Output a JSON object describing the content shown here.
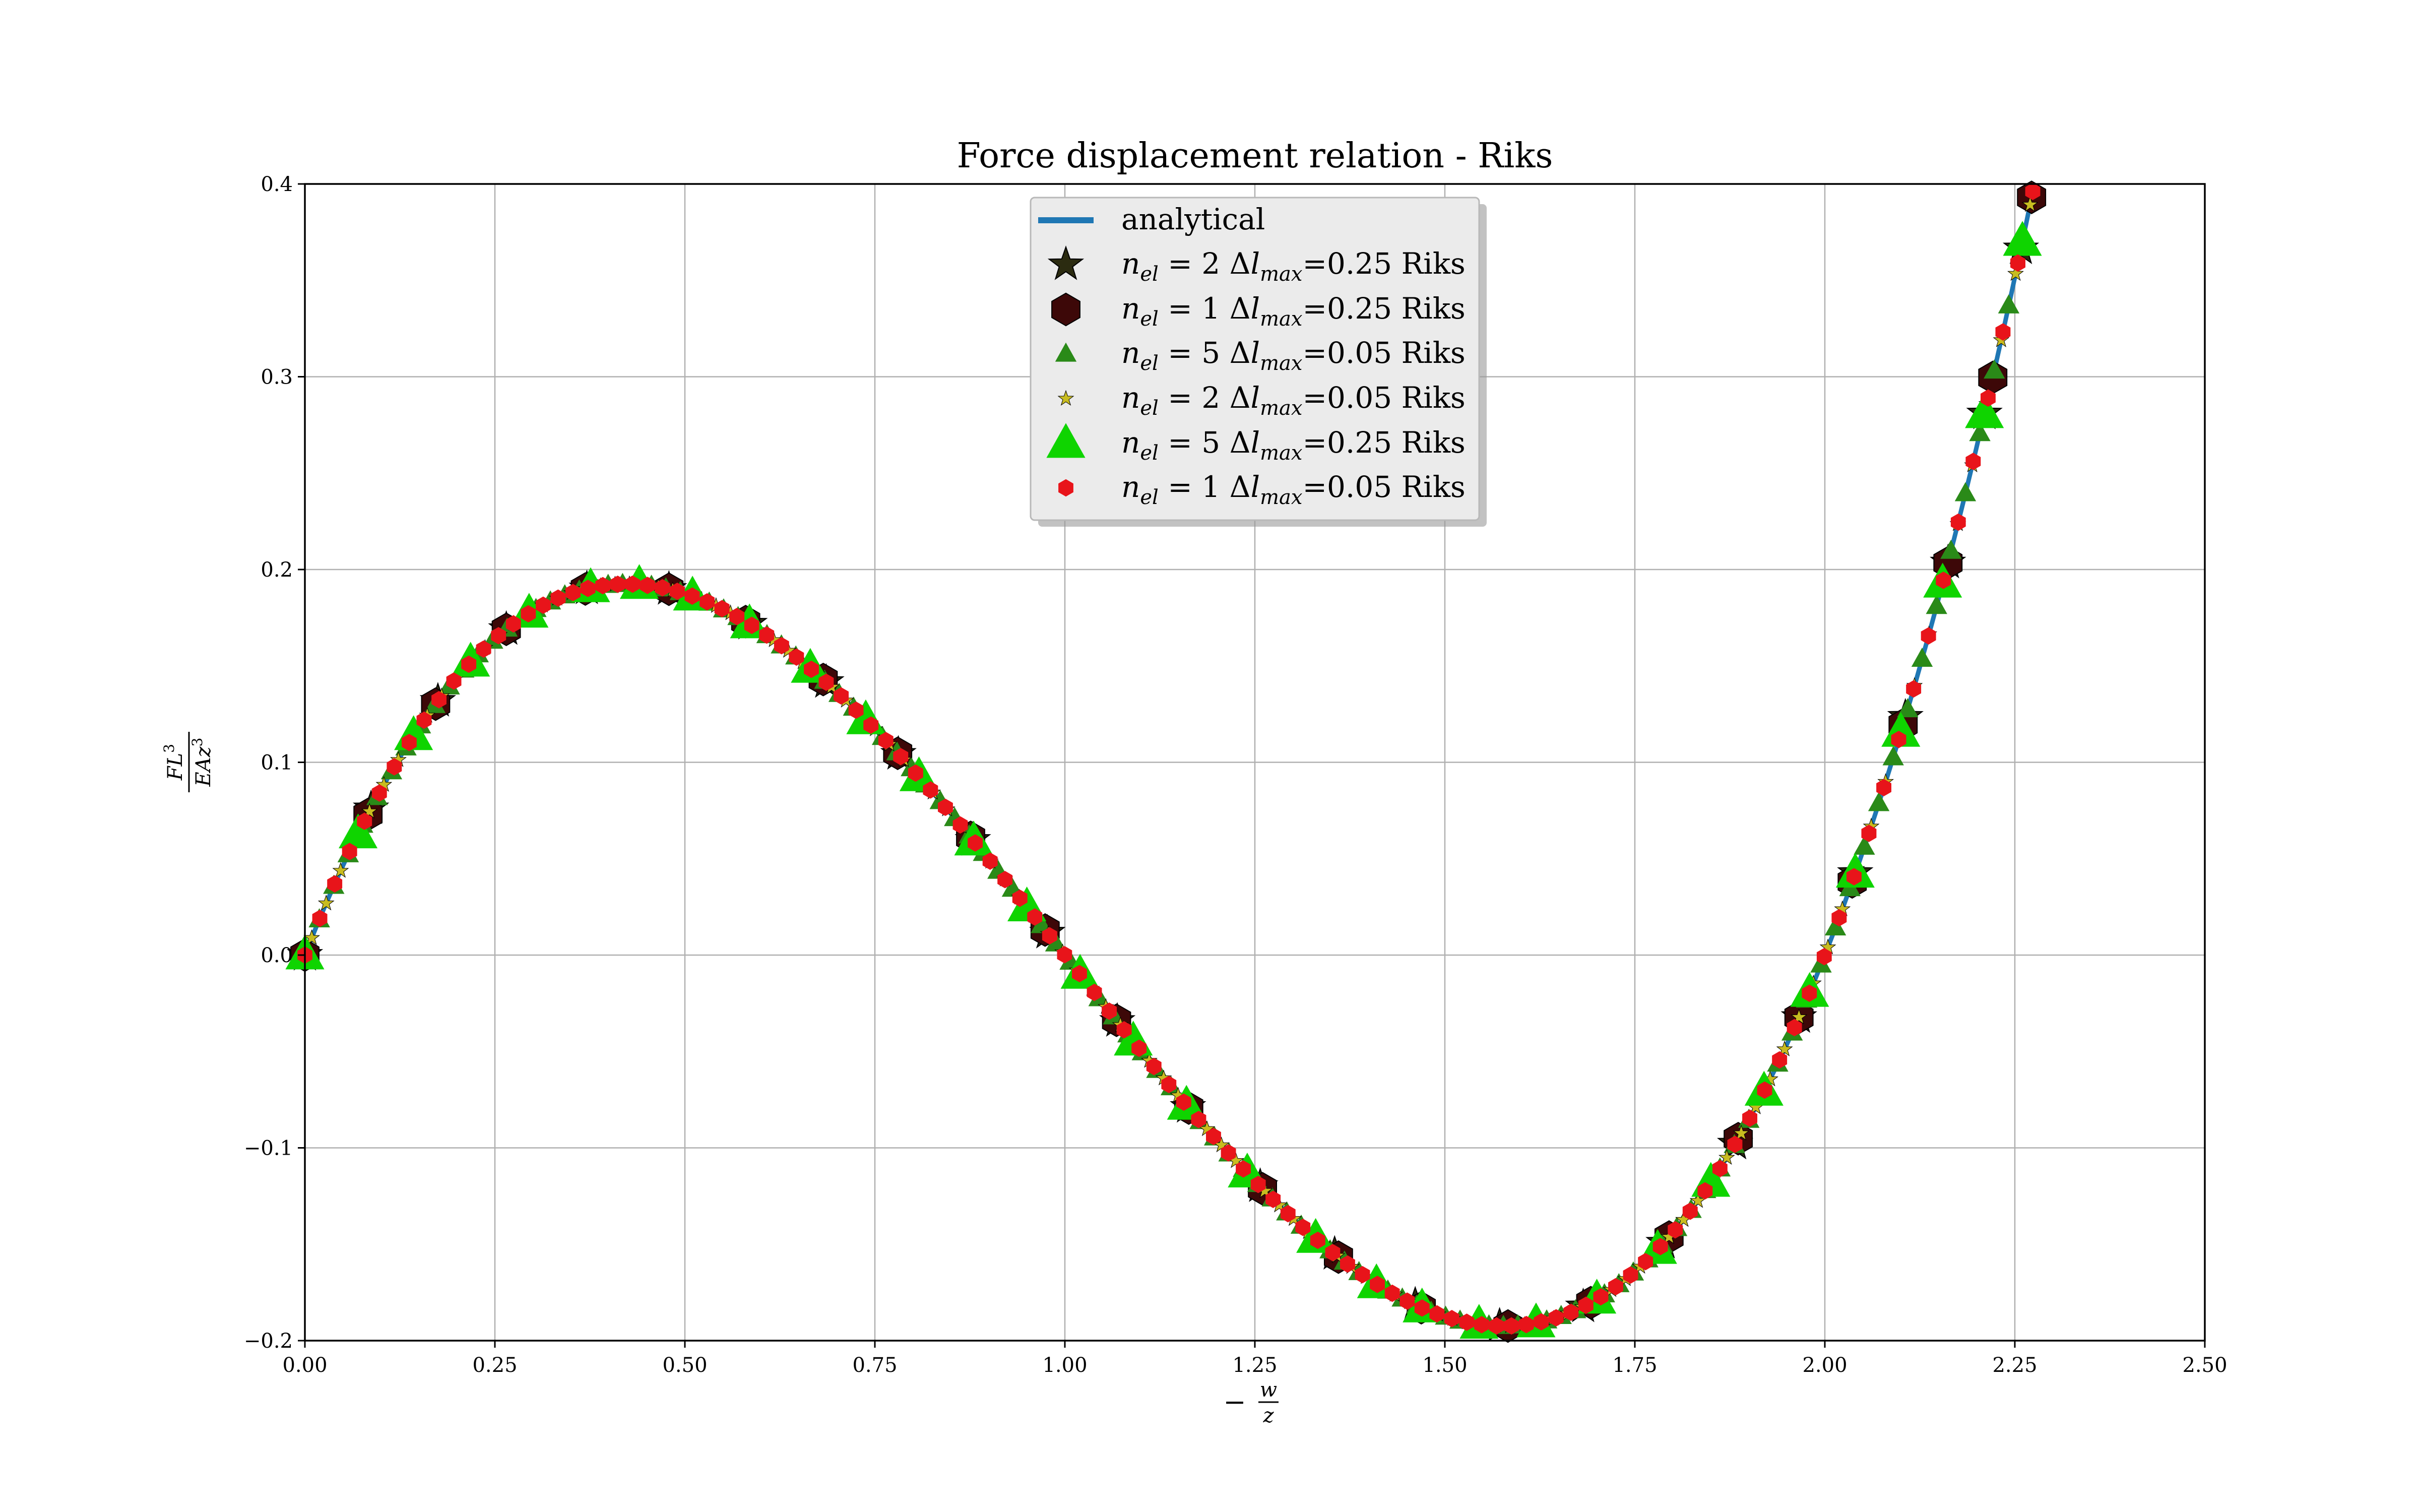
{
  "chart_data": {
    "type": "scatter",
    "title": "Force displacement relation - Riks",
    "xlabel": "−w/z",
    "ylabel": "FL³/EAz³",
    "xlim": [
      0.0,
      2.5
    ],
    "ylim": [
      -0.2,
      0.4
    ],
    "xticks": [
      0.0,
      0.25,
      0.5,
      0.75,
      1.0,
      1.25,
      1.5,
      1.75,
      2.0,
      2.25,
      2.5
    ],
    "yticks": [
      -0.2,
      -0.1,
      0.0,
      0.1,
      0.2,
      0.3,
      0.4
    ],
    "xtick_labels": [
      "0.00",
      "0.25",
      "0.50",
      "0.75",
      "1.00",
      "1.25",
      "1.50",
      "1.75",
      "2.00",
      "2.25",
      "2.50"
    ],
    "ytick_labels": [
      "−0.2",
      "−0.1",
      "0.0",
      "0.1",
      "0.2",
      "0.3",
      "0.4"
    ],
    "grid": true,
    "legend_position": "top-center",
    "analytical_curve": "F = 1/2 u^3 - 3/2 u^2 + u with u = −w/z",
    "series": [
      {
        "name": "analytical",
        "kind": "line",
        "color": "#1f77b4",
        "x_range": [
          0.0,
          2.27
        ]
      },
      {
        "name": "n_el = 2 Δl_max=0.25 Riks",
        "marker": "star",
        "color": "#2b2b10",
        "size": 1.0,
        "x": [
          0.0,
          0.087,
          0.175,
          0.265,
          0.371,
          0.479,
          0.585,
          0.686,
          0.781,
          0.879,
          0.977,
          1.069,
          1.162,
          1.257,
          1.355,
          1.461,
          1.572,
          1.682,
          1.788,
          1.882,
          1.966,
          2.04,
          2.106,
          2.162,
          2.21,
          2.258
        ]
      },
      {
        "name": "n_el = 1 Δl_max=0.25 Riks",
        "marker": "hexagon",
        "color": "#3d0808",
        "size": 1.0,
        "x": [
          0.0,
          0.083,
          0.172,
          0.265,
          0.369,
          0.479,
          0.58,
          0.682,
          0.78,
          0.876,
          0.974,
          1.068,
          1.163,
          1.26,
          1.36,
          1.469,
          1.583,
          1.692,
          1.795,
          1.886,
          1.966,
          2.036,
          2.103,
          2.162,
          2.221,
          2.272
        ]
      },
      {
        "name": "n_el = 5 Δl_max=0.05 Riks",
        "marker": "triangle",
        "color": "#2a8a18",
        "size": 0.55,
        "x_step": 0.019,
        "x_start": 0.0,
        "x_end": 2.27
      },
      {
        "name": "n_el = 2 Δl_max=0.05 Riks",
        "marker": "star",
        "color": "#c8bc20",
        "size": 0.45,
        "x_step": 0.019,
        "x_start": 0.009,
        "x_end": 2.27
      },
      {
        "name": "n_el = 5 Δl_max=0.25 Riks",
        "marker": "triangle",
        "color": "#0fd400",
        "size": 1.0,
        "x": [
          0.0,
          0.07,
          0.143,
          0.218,
          0.295,
          0.376,
          0.44,
          0.51,
          0.585,
          0.665,
          0.738,
          0.808,
          0.88,
          0.95,
          1.02,
          1.09,
          1.16,
          1.24,
          1.33,
          1.41,
          1.47,
          1.545,
          1.62,
          1.7,
          1.78,
          1.85,
          1.92,
          1.98,
          2.04,
          2.1,
          2.155,
          2.21,
          2.26
        ]
      },
      {
        "name": "n_el = 1 Δl_max=0.05 Riks",
        "marker": "hexagon",
        "color": "#e8141a",
        "size": 0.5,
        "x_step": 0.0196,
        "x_start": 0.0,
        "x_end": 2.275
      }
    ]
  },
  "legend": [
    {
      "key": "analytical",
      "label": "analytical"
    },
    {
      "key": "s1",
      "prefix": "n",
      "sub": "el",
      "mid": " = 2 Δ",
      "l": "l",
      "sub2": "max",
      "suffix": "=0.25 Riks"
    },
    {
      "key": "s2",
      "prefix": "n",
      "sub": "el",
      "mid": " = 1 Δ",
      "l": "l",
      "sub2": "max",
      "suffix": "=0.25 Riks"
    },
    {
      "key": "s3",
      "prefix": "n",
      "sub": "el",
      "mid": " = 5 Δ",
      "l": "l",
      "sub2": "max",
      "suffix": "=0.05 Riks"
    },
    {
      "key": "s4",
      "prefix": "n",
      "sub": "el",
      "mid": " = 2 Δ",
      "l": "l",
      "sub2": "max",
      "suffix": "=0.05 Riks"
    },
    {
      "key": "s5",
      "prefix": "n",
      "sub": "el",
      "mid": " = 5 Δ",
      "l": "l",
      "sub2": "max",
      "suffix": "=0.25 Riks"
    },
    {
      "key": "s6",
      "prefix": "n",
      "sub": "el",
      "mid": " = 1 Δ",
      "l": "l",
      "sub2": "max",
      "suffix": "=0.05 Riks"
    }
  ]
}
